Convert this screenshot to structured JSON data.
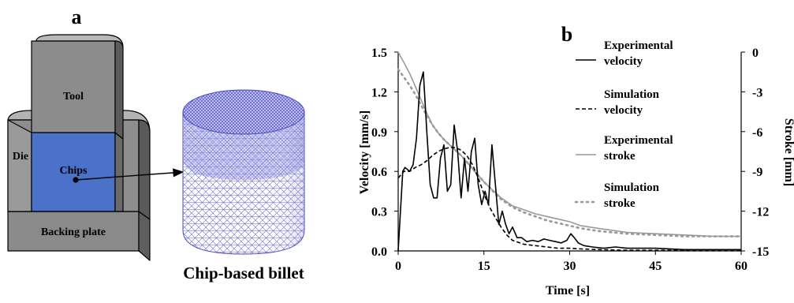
{
  "panel_a": {
    "label": "a",
    "tool_label": "Tool",
    "die_label": "Die",
    "chips_label": "Chips",
    "backing_plate_label": "Backing plate",
    "billet_caption": "Chip-based billet"
  },
  "panel_b": {
    "label": "b"
  },
  "chart_data": {
    "type": "line",
    "xlabel": "Time [s]",
    "ylabel": "Velocity [mm/s]",
    "y2label": "Stroke [mm]",
    "xlim": [
      0,
      60
    ],
    "ylim": [
      0,
      1.5
    ],
    "y2lim": [
      -15,
      0
    ],
    "x_ticks": [
      "0",
      "15",
      "30",
      "45",
      "60"
    ],
    "y_ticks": [
      "0.0",
      "0.3",
      "0.6",
      "0.9",
      "1.2",
      "1.5"
    ],
    "y2_ticks": [
      "0",
      "-3",
      "-6",
      "-9",
      "-12",
      "-15"
    ],
    "grid": false,
    "legend_position": "top-right",
    "series": [
      {
        "name": "Experimental velocity",
        "axis": "left",
        "style": "solid",
        "color": "#000000",
        "x": [
          0,
          0.4,
          0.8,
          1.2,
          2.0,
          2.6,
          3.2,
          3.8,
          4.4,
          5.0,
          5.6,
          6.2,
          6.8,
          7.4,
          8.0,
          8.6,
          9.2,
          9.8,
          10.4,
          11.0,
          11.6,
          12.2,
          12.8,
          13.4,
          14.0,
          14.6,
          15.2,
          15.8,
          16.4,
          17.0,
          17.6,
          18.2,
          18.8,
          19.4,
          20.0,
          20.8,
          21.6,
          22.5,
          23.5,
          24.5,
          25.5,
          26.5,
          27.5,
          28.5,
          29.5,
          30.2,
          30.8,
          31.5,
          32.5,
          34,
          36,
          38,
          40,
          45,
          50,
          55,
          60
        ],
        "y": [
          0.0,
          0.3,
          0.6,
          0.63,
          0.6,
          0.65,
          0.85,
          1.25,
          1.35,
          0.9,
          0.5,
          0.4,
          0.4,
          0.7,
          0.8,
          0.45,
          0.5,
          0.95,
          0.75,
          0.4,
          0.7,
          0.45,
          0.75,
          0.85,
          0.5,
          0.35,
          0.45,
          0.35,
          0.8,
          0.5,
          0.2,
          0.3,
          0.2,
          0.13,
          0.18,
          0.1,
          0.1,
          0.07,
          0.08,
          0.07,
          0.09,
          0.08,
          0.07,
          0.06,
          0.08,
          0.13,
          0.1,
          0.06,
          0.04,
          0.03,
          0.02,
          0.03,
          0.02,
          0.02,
          0.01,
          0.01,
          0.01
        ]
      },
      {
        "name": "Simulation velocity",
        "axis": "left",
        "style": "dashed",
        "color": "#000000",
        "x": [
          0,
          1,
          2,
          3,
          4,
          5,
          6,
          7,
          8,
          9,
          10,
          11,
          12,
          13,
          14,
          15,
          16,
          17,
          18,
          19,
          20,
          22,
          24,
          26,
          28,
          30,
          32,
          35,
          40,
          45,
          50,
          55,
          60
        ],
        "y": [
          0.55,
          0.6,
          0.6,
          0.63,
          0.65,
          0.68,
          0.72,
          0.75,
          0.77,
          0.78,
          0.78,
          0.76,
          0.72,
          0.65,
          0.55,
          0.43,
          0.33,
          0.25,
          0.18,
          0.12,
          0.08,
          0.05,
          0.04,
          0.03,
          0.02,
          0.02,
          0.015,
          0.01,
          0.005,
          0.005,
          0.005,
          0.005,
          0.005
        ]
      },
      {
        "name": "Experimental stroke",
        "axis": "right",
        "style": "solid",
        "color": "#999999",
        "x": [
          0,
          1,
          2,
          3,
          4,
          5,
          6,
          7,
          8,
          9,
          10,
          11,
          12,
          13,
          14,
          15,
          16,
          17,
          18,
          19,
          20,
          22,
          24,
          26,
          28,
          30,
          32,
          35,
          40,
          45,
          50,
          55,
          60
        ],
        "y": [
          0,
          -0.8,
          -1.6,
          -2.6,
          -3.6,
          -4.6,
          -5.5,
          -6.1,
          -6.6,
          -7.0,
          -7.4,
          -7.8,
          -8.3,
          -8.8,
          -9.3,
          -9.8,
          -10.2,
          -10.6,
          -11.0,
          -11.3,
          -11.6,
          -11.9,
          -12.2,
          -12.4,
          -12.6,
          -12.8,
          -13.1,
          -13.3,
          -13.6,
          -13.7,
          -13.8,
          -13.9,
          -13.9
        ]
      },
      {
        "name": "Simulation stroke",
        "axis": "right",
        "style": "dotted",
        "color": "#999999",
        "x": [
          0,
          1,
          2,
          3,
          4,
          5,
          6,
          7,
          8,
          9,
          10,
          11,
          12,
          13,
          14,
          15,
          16,
          17,
          18,
          19,
          20,
          22,
          24,
          26,
          28,
          30,
          32,
          35,
          40,
          45,
          50,
          55,
          60
        ],
        "y": [
          -1.3,
          -1.9,
          -2.5,
          -3.2,
          -4.0,
          -4.8,
          -5.5,
          -6.1,
          -6.6,
          -7.0,
          -7.4,
          -7.8,
          -8.3,
          -8.8,
          -9.3,
          -9.8,
          -10.2,
          -10.7,
          -11.1,
          -11.4,
          -11.7,
          -12.1,
          -12.4,
          -12.7,
          -12.9,
          -13.1,
          -13.3,
          -13.5,
          -13.7,
          -13.8,
          -13.9,
          -13.9,
          -13.9
        ]
      }
    ]
  }
}
